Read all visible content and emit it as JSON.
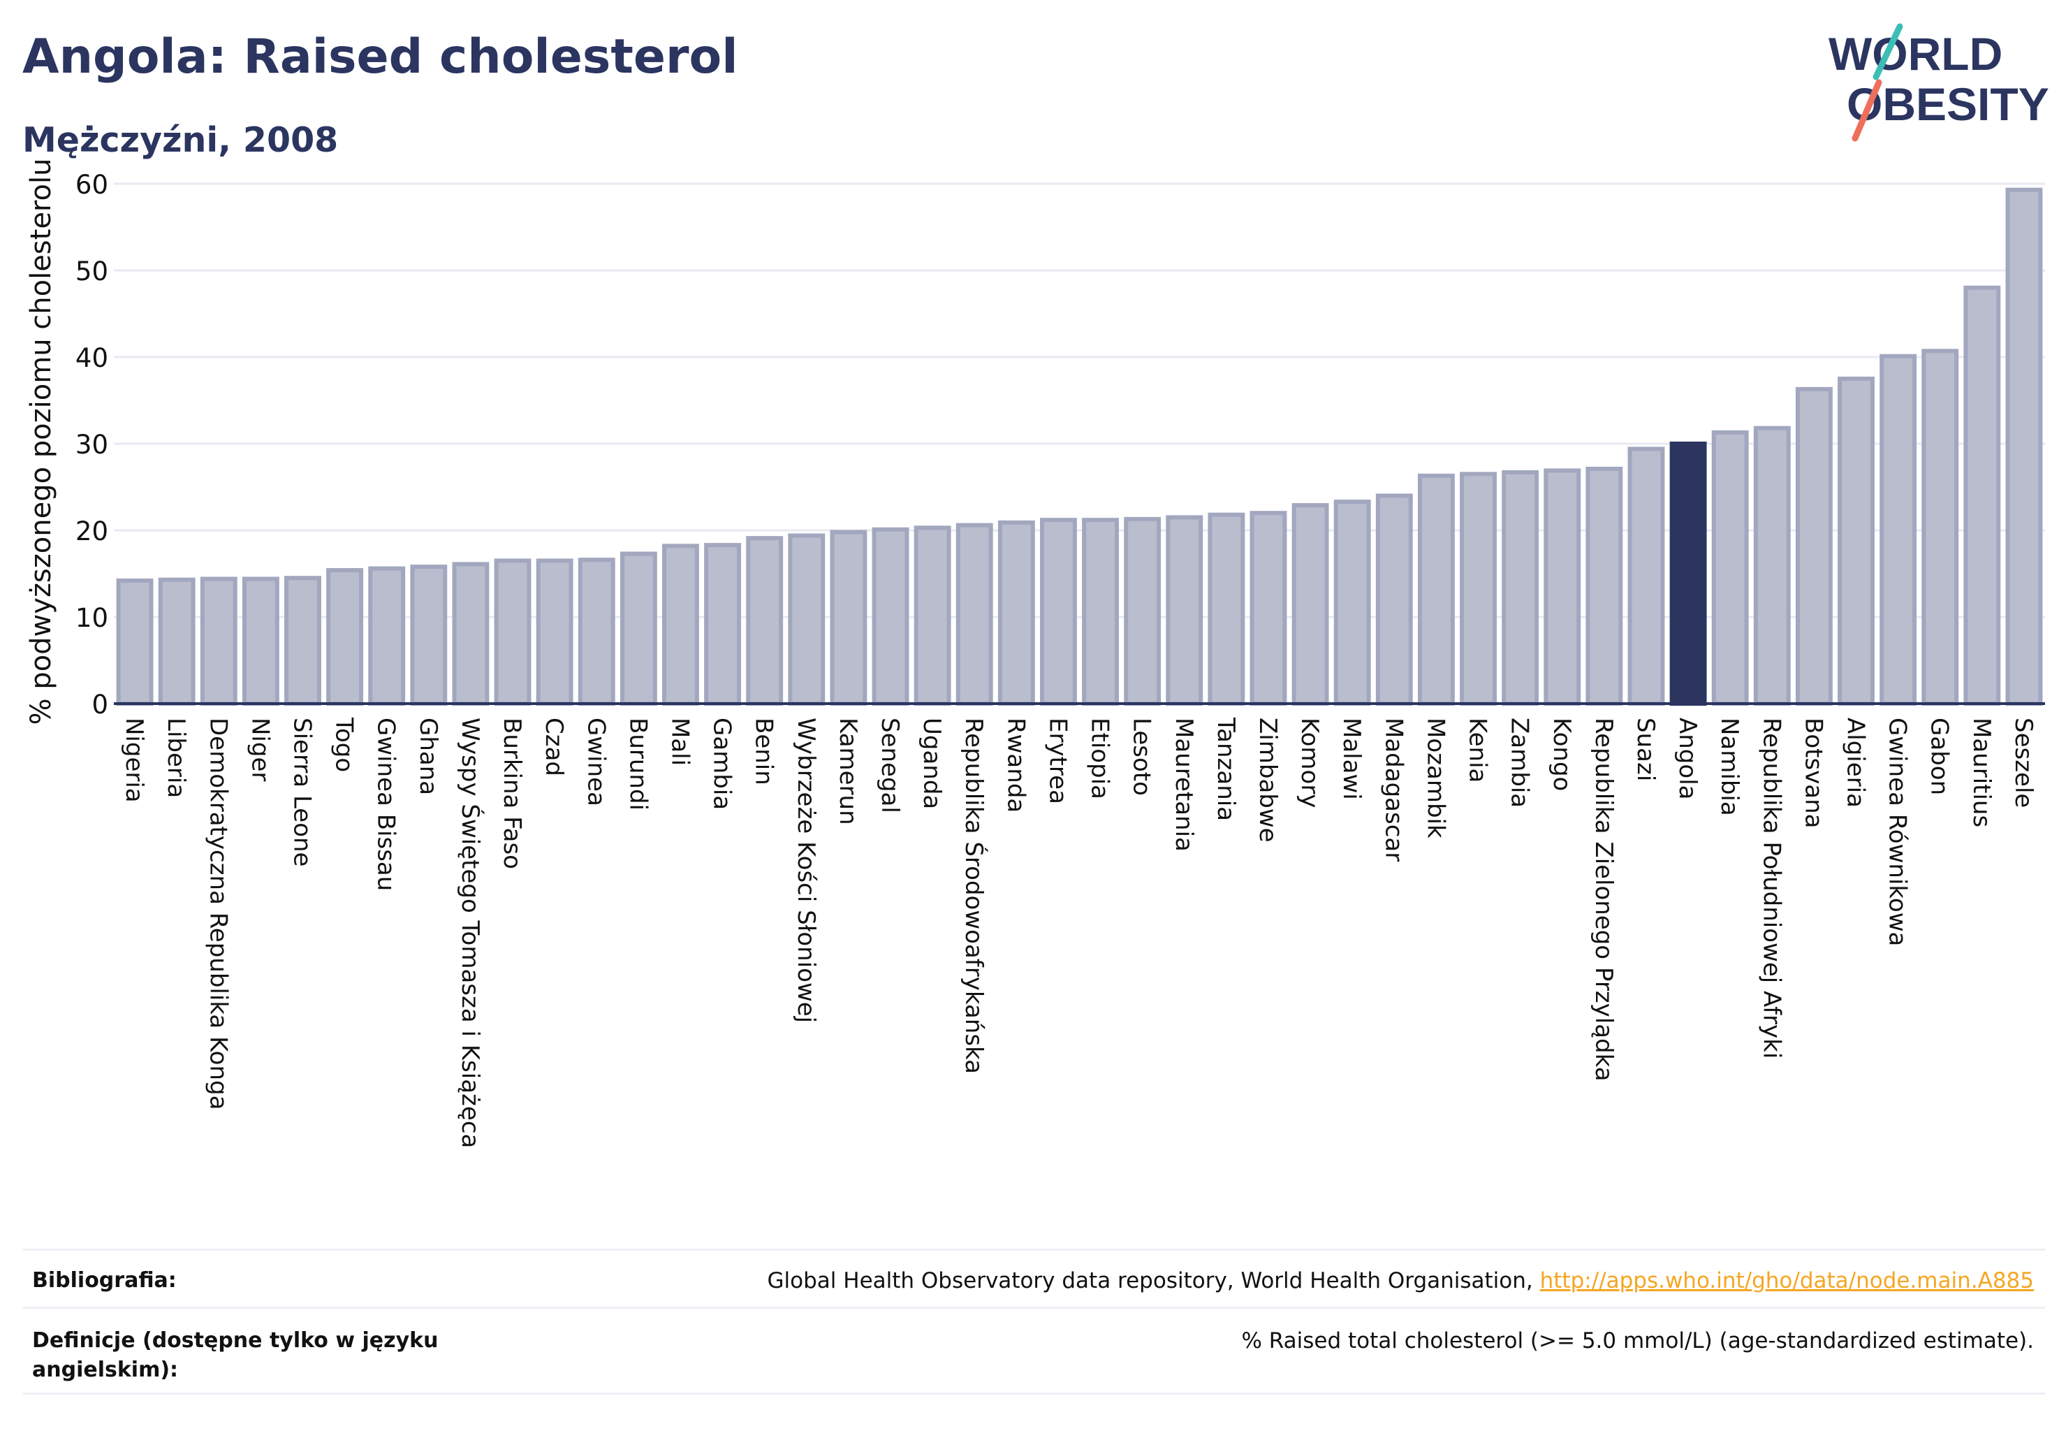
{
  "title": "Angola: Raised cholesterol",
  "subtitle": "Mężczyźni, 2008",
  "logo": {
    "line1": "WORLD",
    "line2": "OBESITY"
  },
  "colors": {
    "bar_fill": "#b9bdcd",
    "bar_stroke": "#a2a7bf",
    "highlight": "#2b3560",
    "text": "#2b3560",
    "grid": "#e8eaf2",
    "link": "#f5a623",
    "logo_teal": "#3dbdb5",
    "logo_coral": "#ee6f5b"
  },
  "chart_data": {
    "type": "bar",
    "ylabel": "% podwyższonego poziomu cholesterolu",
    "ylim": [
      0,
      62
    ],
    "yticks": [
      0,
      10,
      20,
      30,
      40,
      50,
      60
    ],
    "highlight": "Angola",
    "grid": true,
    "categories": [
      "Nigeria",
      "Liberia",
      "Demokratyczna Republika Konga",
      "Niger",
      "Sierra Leone",
      "Togo",
      "Gwinea Bissau",
      "Ghana",
      "Wyspy Świętego Tomasza i Książęca",
      "Burkina Faso",
      "Czad",
      "Gwinea",
      "Burundi",
      "Mali",
      "Gambia",
      "Benin",
      "Wybrzeże Kości Słoniowej",
      "Kamerun",
      "Senegal",
      "Uganda",
      "Republika Środowoafrykańska",
      "Rwanda",
      "Erytrea",
      "Etiopia",
      "Lesoto",
      "Mauretania",
      "Tanzania",
      "Zimbabwe",
      "Komory",
      "Malawi",
      "Madagascar",
      "Mozambik",
      "Kenia",
      "Zambia",
      "Kongo",
      "Republika Zielonego Przylądka",
      "Suazi",
      "Angola",
      "Namibia",
      "Republika Południowej Afryki",
      "Botsvana",
      "Algieria",
      "Gwinea Równikowa",
      "Gabon",
      "Mauritius",
      "Seszele"
    ],
    "values": [
      14.2,
      14.3,
      14.4,
      14.4,
      14.5,
      15.4,
      15.6,
      15.8,
      16.1,
      16.5,
      16.5,
      16.6,
      17.3,
      18.2,
      18.3,
      19.1,
      19.4,
      19.8,
      20.1,
      20.3,
      20.6,
      20.9,
      21.2,
      21.2,
      21.3,
      21.5,
      21.8,
      22.0,
      22.9,
      23.3,
      24.0,
      26.3,
      26.5,
      26.7,
      26.9,
      27.1,
      29.4,
      30.0,
      31.3,
      31.8,
      36.3,
      37.5,
      40.1,
      40.7,
      48.0,
      59.3
    ]
  },
  "footer": {
    "bibliography_label": "Bibliografia:",
    "bibliography_text": "Global Health Observatory data repository, World Health Organisation, ",
    "bibliography_link": "http://apps.who.int/gho/data/node.main.A885",
    "definitions_label": "Definicje (dostępne tylko w języku angielskim):",
    "definitions_text": "% Raised total cholesterol (>= 5.0 mmol/L) (age-standardized estimate)."
  }
}
